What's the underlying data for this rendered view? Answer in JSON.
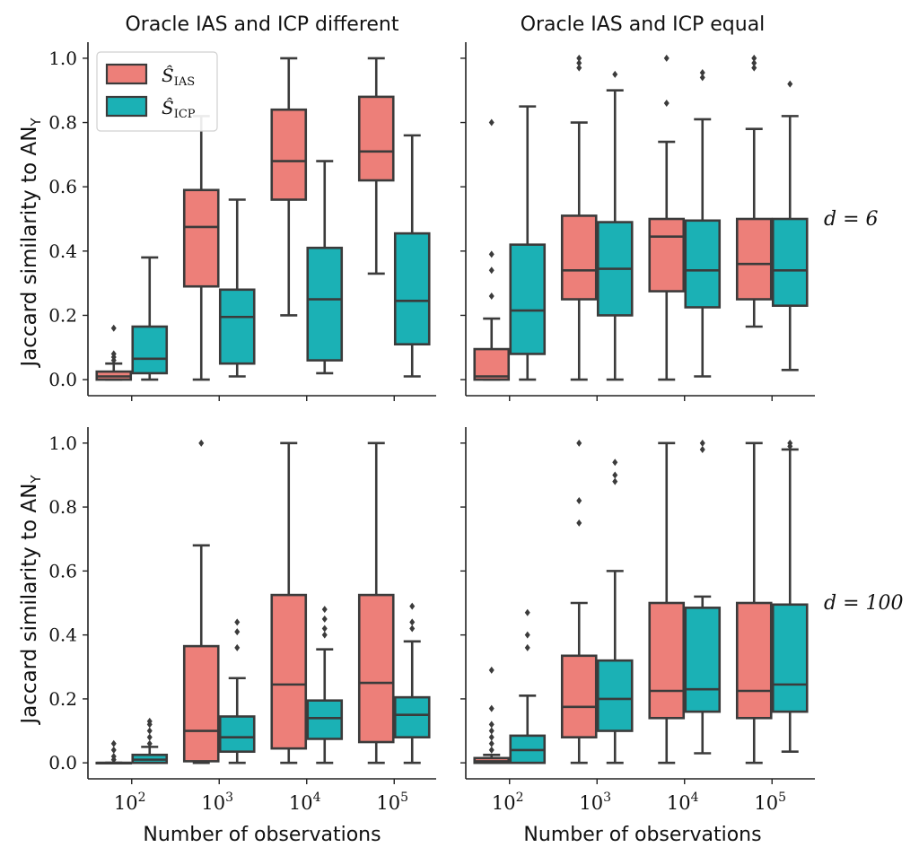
{
  "colors": {
    "ias": "#ed7f79",
    "icp": "#1bb1b5",
    "line": "#3b3b3b"
  },
  "figure": {
    "ylabel_main": "Jaccard similarity to AN",
    "ylabel_sub": "Y",
    "xlabel": "Number of observations",
    "col_titles": [
      "Oracle IAS and ICP different",
      "Oracle IAS and ICP equal"
    ],
    "row_labels": [
      "d = 6",
      "d = 100"
    ],
    "legend": [
      {
        "main": "Ŝ",
        "sub": "IAS",
        "color": "#ed7f79"
      },
      {
        "main": "Ŝ",
        "sub": "ICP",
        "color": "#1bb1b5"
      }
    ]
  },
  "chart_data": {
    "type": "boxplot",
    "categories": [
      {
        "base": "10",
        "exp": "2"
      },
      {
        "base": "10",
        "exp": "3"
      },
      {
        "base": "10",
        "exp": "4"
      },
      {
        "base": "10",
        "exp": "5"
      }
    ],
    "series_names": [
      "IAS",
      "ICP"
    ],
    "ylim": [
      -0.05,
      1.05
    ],
    "yticks": [
      "0.0",
      "0.2",
      "0.4",
      "0.6",
      "0.8",
      "1.0"
    ],
    "legend_position": "upper-left of top-left panel",
    "panels": [
      {
        "row": 0,
        "col": 0,
        "ytick_labels": true,
        "xtick_labels": false,
        "boxes": [
          [
            {
              "q1": 0.0,
              "med": 0.01,
              "q3": 0.025,
              "wlo": 0.0,
              "whi": 0.05,
              "out": [
                0.06,
                0.07,
                0.08,
                0.16
              ]
            },
            {
              "q1": 0.02,
              "med": 0.065,
              "q3": 0.165,
              "wlo": 0.0,
              "whi": 0.38,
              "out": []
            }
          ],
          [
            {
              "q1": 0.29,
              "med": 0.475,
              "q3": 0.59,
              "wlo": 0.0,
              "whi": 0.82,
              "out": []
            },
            {
              "q1": 0.05,
              "med": 0.195,
              "q3": 0.28,
              "wlo": 0.01,
              "whi": 0.56,
              "out": []
            }
          ],
          [
            {
              "q1": 0.56,
              "med": 0.68,
              "q3": 0.84,
              "wlo": 0.2,
              "whi": 1.0,
              "out": []
            },
            {
              "q1": 0.06,
              "med": 0.25,
              "q3": 0.41,
              "wlo": 0.02,
              "whi": 0.68,
              "out": []
            }
          ],
          [
            {
              "q1": 0.62,
              "med": 0.71,
              "q3": 0.88,
              "wlo": 0.33,
              "whi": 1.0,
              "out": []
            },
            {
              "q1": 0.11,
              "med": 0.245,
              "q3": 0.455,
              "wlo": 0.01,
              "whi": 0.76,
              "out": []
            }
          ]
        ]
      },
      {
        "row": 0,
        "col": 1,
        "ytick_labels": false,
        "xtick_labels": false,
        "boxes": [
          [
            {
              "q1": 0.0,
              "med": 0.01,
              "q3": 0.095,
              "wlo": 0.0,
              "whi": 0.19,
              "out": [
                0.26,
                0.34,
                0.39,
                0.8
              ]
            },
            {
              "q1": 0.08,
              "med": 0.215,
              "q3": 0.42,
              "wlo": 0.0,
              "whi": 0.85,
              "out": []
            }
          ],
          [
            {
              "q1": 0.25,
              "med": 0.34,
              "q3": 0.51,
              "wlo": 0.0,
              "whi": 0.8,
              "out": [
                0.97,
                0.985,
                1.0
              ]
            },
            {
              "q1": 0.2,
              "med": 0.345,
              "q3": 0.49,
              "wlo": 0.0,
              "whi": 0.9,
              "out": [
                0.95
              ]
            }
          ],
          [
            {
              "q1": 0.275,
              "med": 0.445,
              "q3": 0.5,
              "wlo": 0.0,
              "whi": 0.74,
              "out": [
                0.86,
                1.0
              ]
            },
            {
              "q1": 0.225,
              "med": 0.34,
              "q3": 0.495,
              "wlo": 0.01,
              "whi": 0.81,
              "out": [
                0.94,
                0.955
              ]
            }
          ],
          [
            {
              "q1": 0.25,
              "med": 0.36,
              "q3": 0.5,
              "wlo": 0.165,
              "whi": 0.78,
              "out": [
                0.97,
                0.985,
                1.0
              ]
            },
            {
              "q1": 0.23,
              "med": 0.34,
              "q3": 0.5,
              "wlo": 0.03,
              "whi": 0.82,
              "out": [
                0.92
              ]
            }
          ]
        ]
      },
      {
        "row": 1,
        "col": 0,
        "ytick_labels": true,
        "xtick_labels": true,
        "boxes": [
          [
            {
              "q1": 0.0,
              "med": 0.0,
              "q3": 0.0,
              "wlo": 0.0,
              "whi": 0.0,
              "out": [
                0.01,
                0.02,
                0.04,
                0.06
              ]
            },
            {
              "q1": 0.0,
              "med": 0.01,
              "q3": 0.025,
              "wlo": 0.0,
              "whi": 0.05,
              "out": [
                0.06,
                0.08,
                0.1,
                0.12,
                0.13
              ]
            }
          ],
          [
            {
              "q1": 0.005,
              "med": 0.1,
              "q3": 0.365,
              "wlo": 0.0,
              "whi": 0.68,
              "out": [
                1.0
              ]
            },
            {
              "q1": 0.035,
              "med": 0.08,
              "q3": 0.145,
              "wlo": 0.0,
              "whi": 0.265,
              "out": [
                0.36,
                0.41,
                0.44
              ]
            }
          ],
          [
            {
              "q1": 0.045,
              "med": 0.245,
              "q3": 0.525,
              "wlo": 0.0,
              "whi": 1.0,
              "out": []
            },
            {
              "q1": 0.075,
              "med": 0.14,
              "q3": 0.195,
              "wlo": 0.0,
              "whi": 0.355,
              "out": [
                0.4,
                0.42,
                0.45,
                0.48
              ]
            }
          ],
          [
            {
              "q1": 0.065,
              "med": 0.25,
              "q3": 0.525,
              "wlo": 0.0,
              "whi": 1.0,
              "out": []
            },
            {
              "q1": 0.08,
              "med": 0.15,
              "q3": 0.205,
              "wlo": 0.0,
              "whi": 0.38,
              "out": [
                0.42,
                0.44,
                0.49
              ]
            }
          ]
        ]
      },
      {
        "row": 1,
        "col": 1,
        "ytick_labels": false,
        "xtick_labels": true,
        "boxes": [
          [
            {
              "q1": 0.0,
              "med": 0.005,
              "q3": 0.015,
              "wlo": 0.0,
              "whi": 0.025,
              "out": [
                0.04,
                0.06,
                0.08,
                0.1,
                0.12,
                0.17,
                0.29
              ]
            },
            {
              "q1": 0.0,
              "med": 0.04,
              "q3": 0.085,
              "wlo": 0.0,
              "whi": 0.21,
              "out": [
                0.36,
                0.4,
                0.47
              ]
            }
          ],
          [
            {
              "q1": 0.08,
              "med": 0.175,
              "q3": 0.335,
              "wlo": 0.0,
              "whi": 0.5,
              "out": [
                0.75,
                0.82,
                1.0
              ]
            },
            {
              "q1": 0.1,
              "med": 0.2,
              "q3": 0.32,
              "wlo": 0.0,
              "whi": 0.6,
              "out": [
                0.88,
                0.9,
                0.94
              ]
            }
          ],
          [
            {
              "q1": 0.14,
              "med": 0.225,
              "q3": 0.5,
              "wlo": 0.0,
              "whi": 1.0,
              "out": []
            },
            {
              "q1": 0.16,
              "med": 0.23,
              "q3": 0.485,
              "wlo": 0.03,
              "whi": 0.52,
              "out": [
                0.98,
                1.0
              ]
            }
          ],
          [
            {
              "q1": 0.14,
              "med": 0.225,
              "q3": 0.5,
              "wlo": 0.0,
              "whi": 1.0,
              "out": []
            },
            {
              "q1": 0.16,
              "med": 0.245,
              "q3": 0.495,
              "wlo": 0.035,
              "whi": 0.98,
              "out": [
                0.99,
                1.0
              ]
            }
          ]
        ]
      }
    ]
  }
}
